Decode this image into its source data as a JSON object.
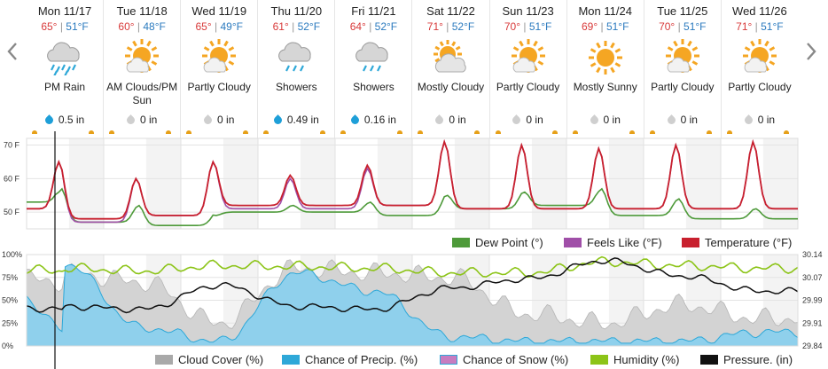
{
  "nav": {
    "prev_icon": "chevron-left-icon",
    "next_icon": "chevron-right-icon"
  },
  "days": [
    {
      "label": "Mon 11/17",
      "hi": "65°",
      "lo": "51°F",
      "icon": "rain",
      "condition": "PM Rain",
      "precip": "0.5 in",
      "wet": true
    },
    {
      "label": "Tue 11/18",
      "hi": "60°",
      "lo": "48°F",
      "icon": "sun-cloud",
      "condition": "AM Clouds/PM Sun",
      "precip": "0 in",
      "wet": false
    },
    {
      "label": "Wed 11/19",
      "hi": "65°",
      "lo": "49°F",
      "icon": "sun-cloud",
      "condition": "Partly Cloudy",
      "precip": "0 in",
      "wet": false
    },
    {
      "label": "Thu 11/20",
      "hi": "61°",
      "lo": "52°F",
      "icon": "showers",
      "condition": "Showers",
      "precip": "0.49 in",
      "wet": true
    },
    {
      "label": "Fri 11/21",
      "hi": "64°",
      "lo": "52°F",
      "icon": "showers",
      "condition": "Showers",
      "precip": "0.16 in",
      "wet": true
    },
    {
      "label": "Sat 11/22",
      "hi": "71°",
      "lo": "52°F",
      "icon": "cloud-sun",
      "condition": "Mostly Cloudy",
      "precip": "0 in",
      "wet": false
    },
    {
      "label": "Sun 11/23",
      "hi": "70°",
      "lo": "51°F",
      "icon": "sun-cloud",
      "condition": "Partly Cloudy",
      "precip": "0 in",
      "wet": false
    },
    {
      "label": "Mon 11/24",
      "hi": "69°",
      "lo": "51°F",
      "icon": "sun",
      "condition": "Mostly Sunny",
      "precip": "0 in",
      "wet": false
    },
    {
      "label": "Tue 11/25",
      "hi": "70°",
      "lo": "51°F",
      "icon": "sun-cloud",
      "condition": "Partly Cloudy",
      "precip": "0 in",
      "wet": false
    },
    {
      "label": "Wed 11/26",
      "hi": "71°",
      "lo": "51°F",
      "icon": "sun-cloud",
      "condition": "Partly Cloudy",
      "precip": "0 in",
      "wet": false
    }
  ],
  "colors": {
    "temperature": "#c8202e",
    "feels_like": "#a04fa8",
    "dew_point": "#4e9a3a",
    "cloud_cover": "#a9a9a9",
    "precip": "#2ea8d8",
    "snow": "#c77cc0",
    "humidity": "#8cc418",
    "pressure": "#111111"
  },
  "chart_data": [
    {
      "type": "line",
      "y_ticks": [
        "70 F",
        "60 F",
        "50 F"
      ],
      "ylim": [
        45,
        72
      ],
      "legend": [
        "Dew Point (°)",
        "Feels Like (°F)",
        "Temperature (°F)"
      ],
      "x_days": [
        "Mon 11/17",
        "Tue 11/18",
        "Wed 11/19",
        "Thu 11/20",
        "Fri 11/21",
        "Sat 11/22",
        "Sun 11/23",
        "Mon 11/24",
        "Tue 11/25",
        "Wed 11/26"
      ],
      "series": [
        {
          "name": "Temperature (°F)",
          "daily_high": [
            65,
            60,
            65,
            61,
            64,
            71,
            70,
            69,
            70,
            71
          ],
          "daily_low": [
            51,
            48,
            49,
            52,
            52,
            52,
            51,
            51,
            51,
            51
          ]
        },
        {
          "name": "Feels Like (°F)",
          "daily_high": [
            65,
            60,
            65,
            60,
            63,
            71,
            70,
            69,
            70,
            71
          ],
          "daily_low": [
            51,
            47,
            49,
            51,
            51,
            52,
            51,
            51,
            51,
            51
          ]
        },
        {
          "name": "Dew Point (°)",
          "daily_high": [
            57,
            52,
            49,
            52,
            53,
            55,
            56,
            57,
            54,
            51
          ],
          "daily_low": [
            53,
            47,
            46,
            50,
            50,
            49,
            51,
            52,
            49,
            48
          ]
        }
      ]
    },
    {
      "type": "area",
      "y_left_ticks": [
        "100%",
        "75%",
        "50%",
        "25%",
        "0%"
      ],
      "y_right_ticks": [
        "30.14",
        "30.07",
        "29.99",
        "29.91",
        "29.84"
      ],
      "ylim_left": [
        0,
        100
      ],
      "ylim_right": [
        29.84,
        30.14
      ],
      "legend": [
        "Cloud Cover (%)",
        "Chance of Precip. (%)",
        "Chance of Snow (%)",
        "Humidity (%)",
        "Pressure. (in)"
      ],
      "series": [
        {
          "name": "Cloud Cover (%)",
          "daily_mean": [
            80,
            70,
            25,
            85,
            80,
            75,
            35,
            25,
            45,
            30
          ]
        },
        {
          "name": "Chance of Precip. (%)",
          "daily_max": [
            90,
            20,
            5,
            80,
            60,
            10,
            5,
            5,
            5,
            15
          ]
        },
        {
          "name": "Chance of Snow (%)",
          "daily_max": [
            0,
            0,
            0,
            0,
            0,
            0,
            0,
            0,
            0,
            0
          ]
        },
        {
          "name": "Humidity (%)",
          "daily_mean": [
            85,
            82,
            88,
            87,
            85,
            80,
            80,
            92,
            88,
            85
          ]
        },
        {
          "name": "Pressure. (in)",
          "daily_mean": [
            29.97,
            29.96,
            30.04,
            29.97,
            29.96,
            30.03,
            30.06,
            30.12,
            30.07,
            30.02
          ]
        }
      ]
    }
  ]
}
